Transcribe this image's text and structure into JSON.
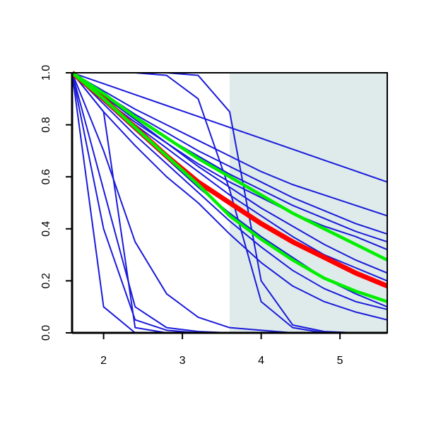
{
  "chart_data": {
    "type": "line",
    "x": [
      1.6,
      2.0,
      2.4,
      2.8,
      3.2,
      3.6,
      4.0,
      4.4,
      4.8,
      5.2,
      5.6
    ],
    "xlim": [
      1.6,
      5.6
    ],
    "xticks": [
      2,
      3,
      4,
      5
    ],
    "ylim": [
      0,
      1
    ],
    "yticks": [
      {
        "value": 0,
        "label": "0.0"
      },
      0.2,
      0.4,
      0.6,
      0.8,
      {
        "value": 1,
        "label": "1.0"
      }
    ],
    "shaded_xrange": [
      3.6,
      5.6
    ],
    "shade_color": "#deebea",
    "series": [
      {
        "color": "#1a1adb",
        "values": [
          1,
          0.958,
          0.916,
          0.874,
          0.832,
          0.79,
          0.748,
          0.706,
          0.664,
          0.622,
          0.58
        ]
      },
      {
        "color": "#1a1adb",
        "values": [
          1,
          0.93,
          0.86,
          0.8,
          0.74,
          0.68,
          0.62,
          0.57,
          0.53,
          0.49,
          0.45
        ]
      },
      {
        "color": "#1a1adb",
        "values": [
          1,
          0.92,
          0.84,
          0.77,
          0.7,
          0.64,
          0.58,
          0.52,
          0.47,
          0.42,
          0.38
        ]
      },
      {
        "color": "#1a1adb",
        "values": [
          1,
          0.91,
          0.83,
          0.75,
          0.68,
          0.61,
          0.55,
          0.49,
          0.44,
          0.39,
          0.35
        ]
      },
      {
        "color": "#1a1adb",
        "values": [
          1,
          0.9,
          0.81,
          0.73,
          0.65,
          0.58,
          0.52,
          0.46,
          0.41,
          0.37,
          0.32
        ]
      },
      {
        "color": "#1a1adb",
        "values": [
          1,
          0.91,
          0.82,
          0.73,
          0.64,
          0.56,
          0.48,
          0.41,
          0.34,
          0.28,
          0.23
        ]
      },
      {
        "color": "#1a1adb",
        "values": [
          1,
          0.9,
          0.8,
          0.71,
          0.62,
          0.53,
          0.45,
          0.37,
          0.3,
          0.25,
          0.2
        ]
      },
      {
        "color": "#1a1adb",
        "values": [
          1,
          0.89,
          0.78,
          0.67,
          0.56,
          0.46,
          0.37,
          0.29,
          0.21,
          0.15,
          0.1
        ]
      },
      {
        "color": "#1a1adb",
        "values": [
          1,
          0.88,
          0.76,
          0.65,
          0.54,
          0.43,
          0.33,
          0.24,
          0.17,
          0.12,
          0.09
        ]
      },
      {
        "color": "#1a1adb",
        "values": [
          1,
          0.85,
          0.72,
          0.6,
          0.5,
          0.38,
          0.27,
          0.18,
          0.12,
          0.08,
          0.05
        ]
      },
      {
        "color": "#1a1adb",
        "values": [
          1,
          1,
          1,
          1,
          0.99,
          0.85,
          0.2,
          0.03,
          0.005,
          0,
          0
        ]
      },
      {
        "color": "#1a1adb",
        "values": [
          1,
          1,
          1,
          0.99,
          0.9,
          0.55,
          0.12,
          0.02,
          0,
          0,
          0
        ]
      },
      {
        "color": "#1a1adb",
        "values": [
          1,
          0.1,
          0,
          0,
          0,
          0,
          0,
          0,
          0,
          0,
          0
        ]
      },
      {
        "color": "#1a1adb",
        "values": [
          1,
          0.85,
          0.02,
          0,
          0,
          0,
          0,
          0,
          0,
          0,
          0
        ]
      },
      {
        "color": "#1a1adb",
        "values": [
          1,
          0.4,
          0.05,
          0.01,
          0,
          0,
          0,
          0,
          0,
          0,
          0
        ]
      },
      {
        "color": "#1a1adb",
        "values": [
          1,
          0.55,
          0.1,
          0.02,
          0.005,
          0,
          0,
          0,
          0,
          0,
          0
        ]
      },
      {
        "color": "#1a1adb",
        "values": [
          1,
          0.7,
          0.35,
          0.15,
          0.06,
          0.02,
          0.01,
          0,
          0,
          0,
          0
        ]
      },
      {
        "color": "#ff0000",
        "values": [
          1,
          0.9,
          0.79,
          0.68,
          0.58,
          0.5,
          0.42,
          0.35,
          0.29,
          0.23,
          0.18
        ]
      },
      {
        "color": "#00ee00",
        "values": [
          1,
          0.92,
          0.83,
          0.75,
          0.67,
          0.6,
          0.53,
          0.46,
          0.4,
          0.34,
          0.28
        ]
      },
      {
        "color": "#00ee00",
        "values": [
          1,
          0.9,
          0.79,
          0.68,
          0.57,
          0.45,
          0.36,
          0.28,
          0.21,
          0.16,
          0.12
        ]
      }
    ]
  }
}
